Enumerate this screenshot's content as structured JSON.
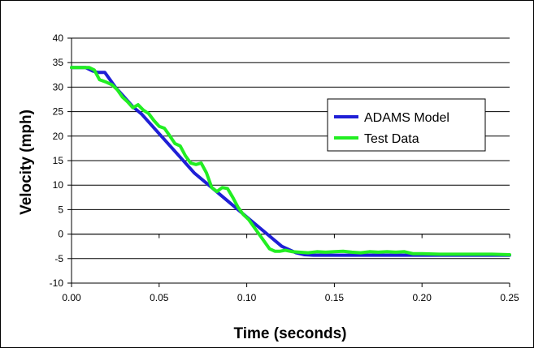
{
  "chart_data": {
    "type": "line",
    "title": "",
    "xlabel": "Time (seconds)",
    "ylabel": "Velocity (mph)",
    "xlim": [
      0,
      0.25
    ],
    "ylim": [
      -10,
      40
    ],
    "xticks": [
      "0.00",
      "0.05",
      "0.10",
      "0.15",
      "0.20",
      "0.25"
    ],
    "yticks": [
      "-10",
      "-5",
      "0",
      "5",
      "10",
      "15",
      "20",
      "25",
      "30",
      "35",
      "40"
    ],
    "xtick_values": [
      0,
      0.05,
      0.1,
      0.15,
      0.2,
      0.25
    ],
    "ytick_values": [
      -10,
      -5,
      0,
      5,
      10,
      15,
      20,
      25,
      30,
      35,
      40
    ],
    "grid": "horizontal",
    "legend_position": "right",
    "series": [
      {
        "name": "ADAMS Model",
        "color": "#1F1FD6",
        "x": [
          0,
          0.008,
          0.012,
          0.015,
          0.019,
          0.021,
          0.025,
          0.03,
          0.035,
          0.04,
          0.05,
          0.06,
          0.07,
          0.08,
          0.09,
          0.1,
          0.11,
          0.12,
          0.128,
          0.133,
          0.138,
          0.15,
          0.17,
          0.19,
          0.21,
          0.23,
          0.25
        ],
        "y": [
          34,
          34,
          33.3,
          33,
          33,
          32,
          30,
          28,
          26,
          24.5,
          20.5,
          16.5,
          12.5,
          9.5,
          6.5,
          3.5,
          0.5,
          -2.5,
          -3.8,
          -4.2,
          -4.3,
          -4.3,
          -4.3,
          -4.3,
          -4.3,
          -4.3,
          -4.3
        ]
      },
      {
        "name": "Test Data",
        "color": "#22EE22",
        "x": [
          0,
          0.01,
          0.013,
          0.016,
          0.02,
          0.023,
          0.026,
          0.029,
          0.032,
          0.035,
          0.038,
          0.041,
          0.044,
          0.047,
          0.05,
          0.053,
          0.056,
          0.059,
          0.062,
          0.065,
          0.068,
          0.071,
          0.074,
          0.077,
          0.08,
          0.083,
          0.086,
          0.089,
          0.092,
          0.095,
          0.098,
          0.101,
          0.104,
          0.107,
          0.11,
          0.113,
          0.116,
          0.119,
          0.122,
          0.126,
          0.13,
          0.135,
          0.14,
          0.145,
          0.15,
          0.155,
          0.16,
          0.165,
          0.17,
          0.175,
          0.18,
          0.185,
          0.19,
          0.195,
          0.2,
          0.21,
          0.22,
          0.23,
          0.24,
          0.25
        ],
        "y": [
          34,
          34,
          33.5,
          31.5,
          31,
          30.5,
          29.5,
          28,
          27,
          25.8,
          26.4,
          25.3,
          24.6,
          23.2,
          22,
          21.6,
          20.1,
          18.5,
          18,
          16,
          14.5,
          14.2,
          14.5,
          12.5,
          9.5,
          8.7,
          9.5,
          9.3,
          7.5,
          5.5,
          4,
          3,
          1.5,
          0,
          -1.5,
          -3,
          -3.5,
          -3.5,
          -3.3,
          -3.6,
          -3.7,
          -3.8,
          -3.6,
          -3.7,
          -3.6,
          -3.5,
          -3.7,
          -3.8,
          -3.6,
          -3.7,
          -3.6,
          -3.7,
          -3.6,
          -4,
          -4,
          -4.1,
          -4.1,
          -4.1,
          -4.1,
          -4.2
        ]
      }
    ]
  }
}
